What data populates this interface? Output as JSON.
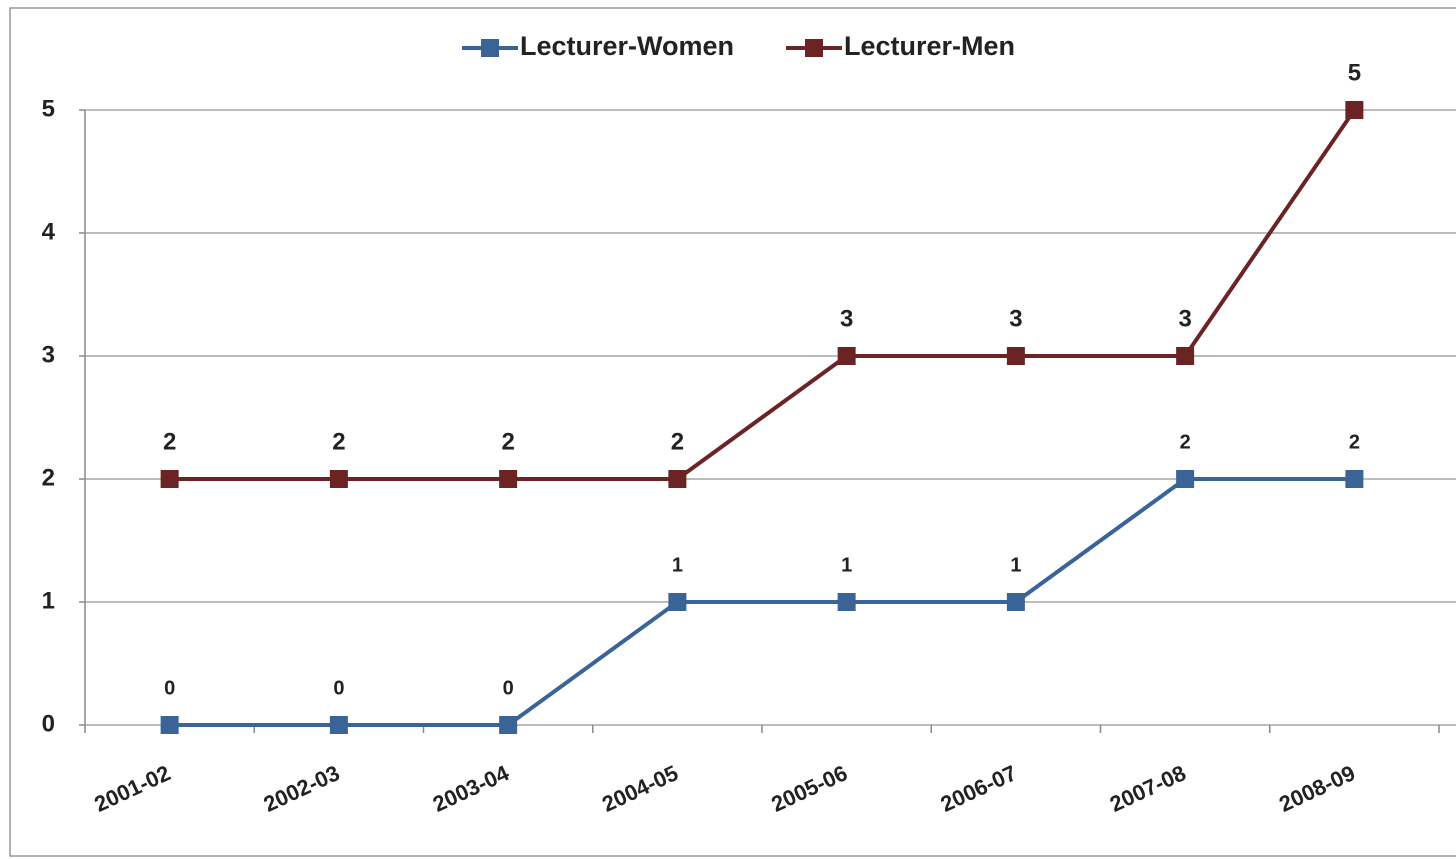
{
  "chart_data": {
    "type": "line",
    "categories": [
      "2001-02",
      "2002-03",
      "2003-04",
      "2004-05",
      "2005-06",
      "2006-07",
      "2007-08",
      "2008-09"
    ],
    "series": [
      {
        "name": "Lecturer-Women",
        "color": "#3a6397",
        "values": [
          0,
          0,
          0,
          1,
          1,
          1,
          2,
          2
        ]
      },
      {
        "name": "Lecturer-Men",
        "color": "#6b2323",
        "values": [
          2,
          2,
          2,
          2,
          3,
          3,
          3,
          5
        ]
      }
    ],
    "ylim": [
      0,
      5
    ],
    "yticks": [
      0,
      1,
      2,
      3,
      4,
      5
    ],
    "grid": true,
    "legend": "top"
  }
}
